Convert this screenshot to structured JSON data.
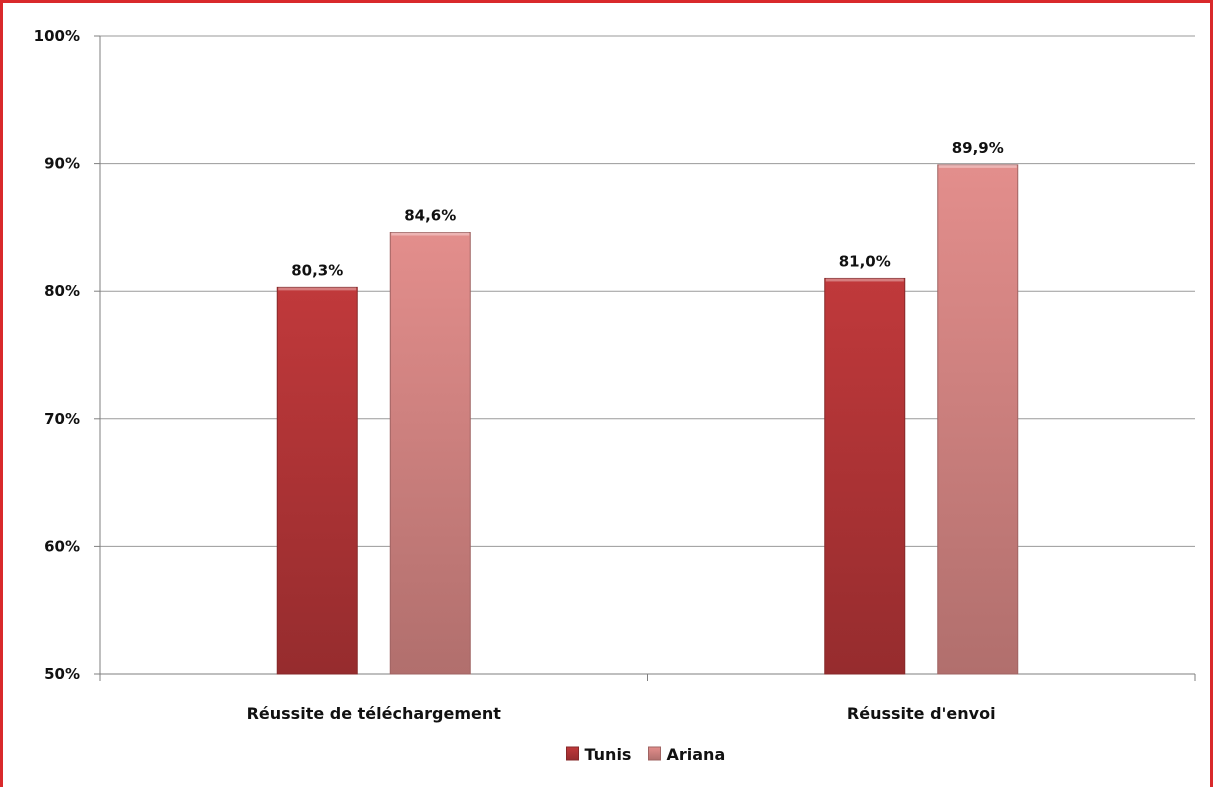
{
  "chart_data": {
    "type": "bar",
    "categories": [
      "Réussite de téléchargement",
      "Réussite d'envoi"
    ],
    "series": [
      {
        "name": "Tunis",
        "values": [
          80.3,
          81.0
        ],
        "labels": [
          "80,3%",
          "81,0%"
        ],
        "color": "#c0393b"
      },
      {
        "name": "Ariana",
        "values": [
          84.6,
          89.9
        ],
        "labels": [
          "84,6%",
          "89,9%"
        ],
        "color": "#e38e8c"
      }
    ],
    "ylim": [
      50,
      100
    ],
    "yticks": [
      50,
      60,
      70,
      80,
      90,
      100
    ],
    "ytick_labels": [
      "50%",
      "60%",
      "70%",
      "80%",
      "90%",
      "100%"
    ],
    "grid": true,
    "legend": "bottom-center",
    "frame_color": "#d9292b"
  }
}
